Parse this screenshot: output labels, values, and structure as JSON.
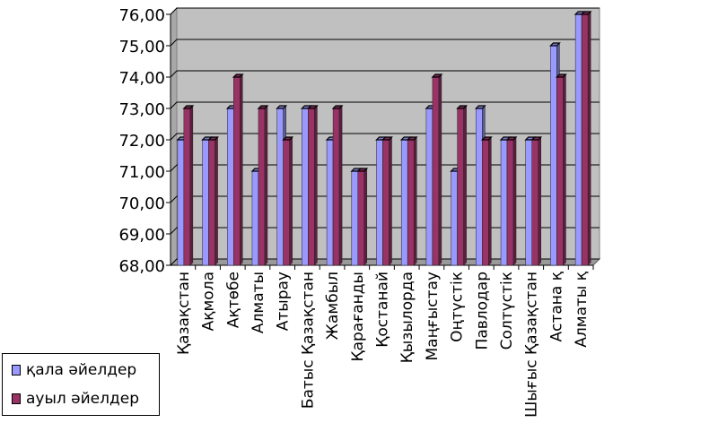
{
  "chart_data": {
    "type": "bar",
    "style": "3d-clustered-columns",
    "categories": [
      "Қазақстан",
      "Ақмола",
      "Ақтөбе",
      "Алматы",
      "Атырау",
      "Батыс Қазақстан",
      "Жамбыл",
      "Қарағанды",
      "Қостанай",
      "Қызылорда",
      "Маңғыстау",
      "Оңтүстік",
      "Павлодар",
      "Солтүстік",
      "Шығыс Қазақстан",
      "Астана қ",
      "Алматы қ"
    ],
    "series": [
      {
        "name": "қала әйелдер",
        "color": "#9999FF",
        "values": [
          72,
          72,
          73,
          71,
          73,
          73,
          72,
          71,
          72,
          72,
          73,
          71,
          73,
          72,
          72,
          75,
          76
        ]
      },
      {
        "name": "ауыл әйелдер",
        "color": "#993366",
        "values": [
          73,
          72,
          74,
          73,
          72,
          73,
          73,
          71,
          72,
          72,
          74,
          73,
          72,
          72,
          72,
          74,
          76
        ]
      }
    ],
    "ylim": [
      68,
      76
    ],
    "yticks": [
      "68,00",
      "69,00",
      "70,00",
      "71,00",
      "72,00",
      "73,00",
      "74,00",
      "75,00",
      "76,00"
    ],
    "xlabel": "",
    "ylabel": "",
    "title": "",
    "grid": true,
    "wall_color": "#C0C0C0",
    "legend_position": "bottom-left"
  }
}
